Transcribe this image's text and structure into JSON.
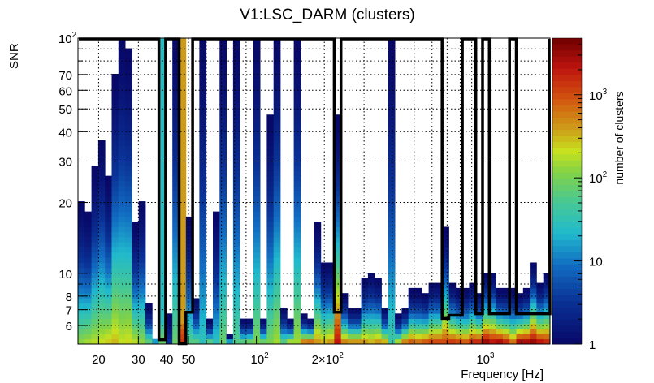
{
  "chart_data": {
    "type": "heatmap",
    "title": "V1:LSC_DARM (clusters)",
    "xlabel": "Frequency [Hz]",
    "ylabel": "SNR",
    "zlabel": "number of clusters",
    "xscale": "log",
    "yscale": "log",
    "zscale": "log",
    "xlim": [
      16.2,
      2000
    ],
    "ylim": [
      5,
      100
    ],
    "zlim": [
      1,
      4800
    ],
    "grid": true,
    "n_rows": 60,
    "x_ticks": [
      {
        "value": 20,
        "base": "20",
        "exp": ""
      },
      {
        "value": 30,
        "base": "30",
        "exp": ""
      },
      {
        "value": 40,
        "base": "40",
        "exp": ""
      },
      {
        "value": 50,
        "base": "50",
        "exp": ""
      },
      {
        "value": 100,
        "base": "10",
        "exp": "2"
      },
      {
        "value": 200,
        "base": "2×10",
        "exp": "2"
      },
      {
        "value": 1000,
        "base": "10",
        "exp": "3"
      }
    ],
    "y_ticks": [
      {
        "value": 6,
        "base": "6",
        "exp": ""
      },
      {
        "value": 7,
        "base": "7",
        "exp": ""
      },
      {
        "value": 8,
        "base": "8",
        "exp": ""
      },
      {
        "value": 10,
        "base": "10",
        "exp": ""
      },
      {
        "value": 20,
        "base": "20",
        "exp": ""
      },
      {
        "value": 30,
        "base": "30",
        "exp": ""
      },
      {
        "value": 40,
        "base": "40",
        "exp": ""
      },
      {
        "value": 50,
        "base": "50",
        "exp": ""
      },
      {
        "value": 60,
        "base": "60",
        "exp": ""
      },
      {
        "value": 70,
        "base": "70",
        "exp": ""
      },
      {
        "value": 100,
        "base": "10",
        "exp": "2"
      }
    ],
    "z_ticks": [
      {
        "value": 1,
        "base": "1",
        "exp": ""
      },
      {
        "value": 10,
        "base": "10",
        "exp": ""
      },
      {
        "value": 100,
        "base": "10",
        "exp": "2"
      },
      {
        "value": 1000,
        "base": "10",
        "exp": "3"
      }
    ],
    "columns": {
      "top_snr": [
        20,
        18,
        28,
        36,
        25,
        70,
        100,
        88,
        16,
        20,
        7.2,
        5.2,
        100,
        6.6,
        100,
        100,
        17,
        7.8,
        100,
        6.2,
        18,
        100,
        5.3,
        100,
        6.3,
        6.3,
        100,
        6.3,
        47,
        100,
        7,
        6.3,
        100,
        6.5,
        6.3,
        16,
        11,
        11,
        45,
        8,
        7,
        7,
        9.5,
        10,
        9.5,
        7,
        100,
        6.5,
        7,
        8.3,
        8.3,
        8,
        9,
        9,
        15,
        9,
        8.4,
        8.4,
        9,
        8.2,
        10,
        10,
        8.4,
        8.4,
        8.4,
        8,
        8.4,
        11,
        9,
        10
      ],
      "bottom_count": [
        120,
        150,
        180,
        200,
        250,
        300,
        200,
        220,
        180,
        120,
        60,
        15,
        25,
        3,
        80,
        800,
        60,
        60,
        30,
        60,
        30,
        80,
        15,
        60,
        60,
        80,
        100,
        80,
        100,
        150,
        60,
        150,
        150,
        500,
        600,
        400,
        300,
        400,
        2000,
        500,
        400,
        400,
        400,
        300,
        400,
        300,
        40,
        150,
        500,
        800,
        600,
        800,
        1000,
        1000,
        1000,
        1200,
        1000,
        800,
        1500,
        1500,
        3000,
        2000,
        2500,
        1500,
        600,
        2500,
        2500,
        3000,
        2000,
        1500
      ],
      "constant_count": {
        "12": 25,
        "15": 400
      },
      "threshold_snr": [
        100,
        100,
        100,
        100,
        100,
        100,
        100,
        100,
        100,
        100,
        100,
        100,
        5.2,
        100,
        100,
        4.9,
        6.8,
        100,
        100,
        100,
        100,
        100,
        100,
        100,
        100,
        100,
        100,
        100,
        100,
        100,
        100,
        100,
        100,
        100,
        100,
        100,
        100,
        100,
        6.8,
        100,
        100,
        100,
        100,
        100,
        100,
        100,
        100,
        100,
        100,
        100,
        100,
        100,
        100,
        100,
        6.4,
        6.6,
        6.6,
        100,
        100,
        6.7,
        100,
        6.7,
        6.7,
        6.7,
        100,
        6.7,
        6.7,
        6.7,
        6.7,
        6.7
      ]
    }
  }
}
